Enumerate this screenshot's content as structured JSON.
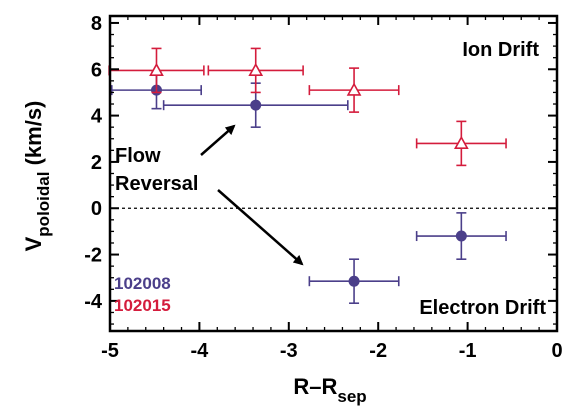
{
  "chart_data": {
    "type": "scatter",
    "xlabel": "R–R",
    "xlabel_sub": "sep",
    "ylabel": "V",
    "ylabel_sub": "poloidal",
    "ylabel_unit": " (km/s)",
    "xlim": [
      -5,
      0
    ],
    "ylim": [
      -5.3,
      8.3
    ],
    "xticks": [
      -5,
      -4,
      -3,
      -2,
      -1,
      0
    ],
    "yticks": [
      -4,
      -2,
      0,
      2,
      4,
      6,
      8
    ],
    "zero_line": true,
    "series": [
      {
        "name": "102008",
        "color": "#4b3f8a",
        "marker": "circle",
        "points": [
          {
            "x": -4.48,
            "y": 5.1,
            "xerr": 0.5,
            "yerr": 0.8
          },
          {
            "x": -3.37,
            "y": 4.45,
            "xerr": 1.03,
            "yerr": 0.95
          },
          {
            "x": -2.27,
            "y": -3.15,
            "xerr": 0.5,
            "yerr": 0.95
          },
          {
            "x": -1.07,
            "y": -1.2,
            "xerr": 0.5,
            "yerr": 1.0
          }
        ]
      },
      {
        "name": "102015",
        "color": "#d41c3c",
        "marker": "triangle",
        "points": [
          {
            "x": -4.48,
            "y": 5.95,
            "xerr": 0.53,
            "yerr": 0.95
          },
          {
            "x": -3.37,
            "y": 5.95,
            "xerr": 0.53,
            "yerr": 0.95
          },
          {
            "x": -2.27,
            "y": 5.1,
            "xerr": 0.5,
            "yerr": 0.95
          },
          {
            "x": -1.07,
            "y": 2.8,
            "xerr": 0.5,
            "yerr": 0.95
          }
        ]
      }
    ],
    "annotations": {
      "ion": "Ion Drift",
      "electron": "Electron Drift",
      "flow_line1": "Flow",
      "flow_line2": "Reversal"
    },
    "legend": {
      "placement": "bottom-left",
      "entries": [
        "102008",
        "102015"
      ]
    }
  }
}
